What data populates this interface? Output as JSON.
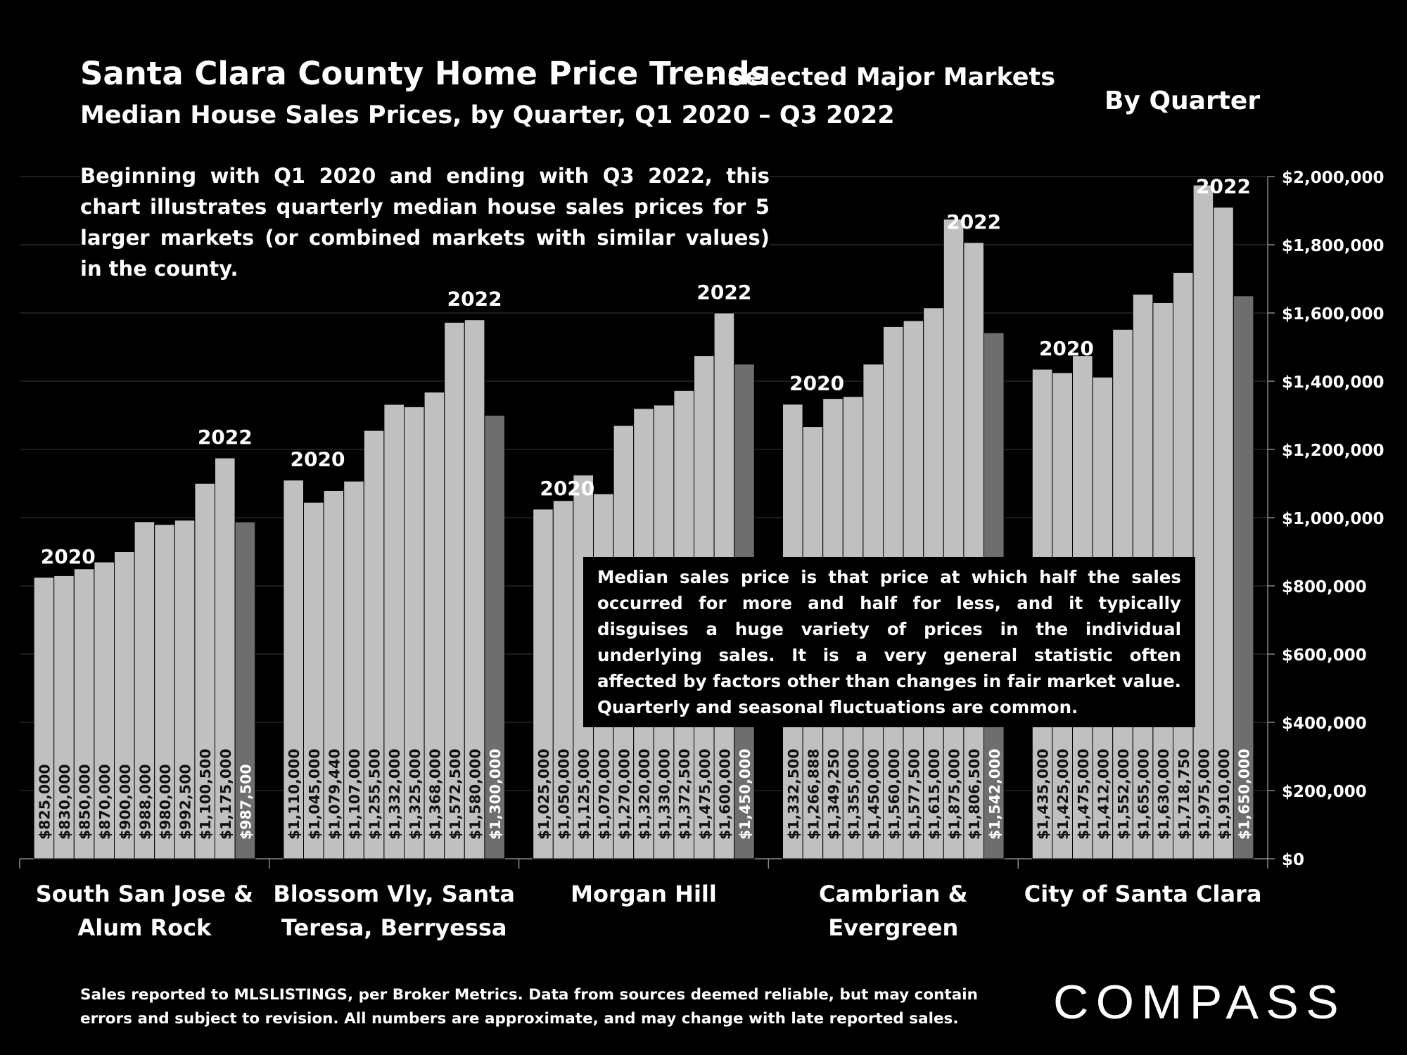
{
  "header": {
    "title": "Santa Clara County Home Price Trends",
    "title_suffix": "– Selected Major Markets",
    "subtitle": "Median House Sales Prices, by Quarter, Q1 2020 – Q3 2022",
    "by_quarter": "By Quarter"
  },
  "intro_text": "Beginning with Q1 2020 and ending with Q3 2022, this chart illustrates quarterly median house sales prices for 5 larger markets (or combined markets with similar values) in the county.",
  "note_text": "Median sales price is that price at which half the sales occurred for more and half for less, and it typically disguises a huge variety of prices in the individual underlying sales. It is a very general statistic often affected by factors other than changes in fair market value. Quarterly and seasonal fluctuations are common.",
  "footer_text": "Sales reported to MLSLISTINGS, per Broker Metrics. Data from sources deemed reliable, but may contain errors and subject to revision. All numbers are approximate, and may change with late reported sales.",
  "logo_text": "COMPASS",
  "colors": {
    "background": "#000000",
    "bar": "#c0c0c0",
    "bar_latest": "#6e6e6e",
    "text": "#ffffff"
  },
  "chart_data": {
    "type": "bar",
    "grid": true,
    "y_axis_position": "right",
    "ylim": [
      0,
      2000000
    ],
    "yticks": [
      "$0",
      "$200,000",
      "$400,000",
      "$600,000",
      "$800,000",
      "$1,000,000",
      "$1,200,000",
      "$1,400,000",
      "$1,600,000",
      "$1,800,000",
      "$2,000,000"
    ],
    "ytick_values": [
      0,
      200000,
      400000,
      600000,
      800000,
      1000000,
      1200000,
      1400000,
      1600000,
      1800000,
      2000000
    ],
    "groups": [
      {
        "name": "South San Jose & Alum Rock",
        "name_lines": [
          "South San Jose &",
          "Alum Rock"
        ],
        "year_start_label": "2020",
        "year_end_label": "2022",
        "values": [
          825000,
          830000,
          850000,
          870000,
          900000,
          988000,
          980000,
          992500,
          1100500,
          1175000,
          987500
        ],
        "labels": [
          "$825,000",
          "$830,000",
          "$850,000",
          "$870,000",
          "$900,000",
          "$988,000",
          "$980,000",
          "$992,500",
          "$1,100,500",
          "$1,175,000",
          "$987,500"
        ]
      },
      {
        "name": "Blossom Vly, Santa Teresa, Berryessa",
        "name_lines": [
          "Blossom Vly, Santa",
          "Teresa, Berryessa"
        ],
        "year_start_label": "2020",
        "year_end_label": "2022",
        "values": [
          1110000,
          1045000,
          1079440,
          1107000,
          1255500,
          1332000,
          1325000,
          1368000,
          1572500,
          1580000,
          1300000
        ],
        "labels": [
          "$1,110,000",
          "$1,045,000",
          "$1,079,440",
          "$1,107,000",
          "$1,255,500",
          "$1,332,000",
          "$1,325,000",
          "$1,368,000",
          "$1,572,500",
          "$1,580,000",
          "$1,300,000"
        ]
      },
      {
        "name": "Morgan Hill",
        "name_lines": [
          "Morgan Hill"
        ],
        "year_start_label": "2020",
        "year_end_label": "2022",
        "values": [
          1025000,
          1050000,
          1125000,
          1070000,
          1270000,
          1320000,
          1330000,
          1372500,
          1475000,
          1600000,
          1450000
        ],
        "labels": [
          "$1,025,000",
          "$1,050,000",
          "$1,125,000",
          "$1,070,000",
          "$1,270,000",
          "$1,320,000",
          "$1,330,000",
          "$1,372,500",
          "$1,475,000",
          "$1,600,000",
          "$1,450,000"
        ]
      },
      {
        "name": "Cambrian & Evergreen",
        "name_lines": [
          "Cambrian &",
          "Evergreen"
        ],
        "year_start_label": "2020",
        "year_end_label": "2022",
        "values": [
          1332500,
          1266888,
          1349250,
          1355000,
          1450000,
          1560000,
          1577500,
          1615000,
          1875000,
          1806500,
          1542000
        ],
        "labels": [
          "$1,332,500",
          "$1,266,888",
          "$1,349,250",
          "$1,355,000",
          "$1,450,000",
          "$1,560,000",
          "$1,577,500",
          "$1,615,000",
          "$1,875,000",
          "$1,806,500",
          "$1,542,000"
        ]
      },
      {
        "name": "City of Santa Clara",
        "name_lines": [
          "City of Santa Clara"
        ],
        "year_start_label": "2020",
        "year_end_label": "2022",
        "values": [
          1435000,
          1425000,
          1475000,
          1412000,
          1552000,
          1655000,
          1630000,
          1718750,
          1975000,
          1910000,
          1650000
        ],
        "labels": [
          "$1,435,000",
          "$1,425,000",
          "$1,475,000",
          "$1,412,000",
          "$1,552,000",
          "$1,655,000",
          "$1,630,000",
          "$1,718,750",
          "$1,975,000",
          "$1,910,000",
          "$1,650,000"
        ]
      }
    ]
  }
}
